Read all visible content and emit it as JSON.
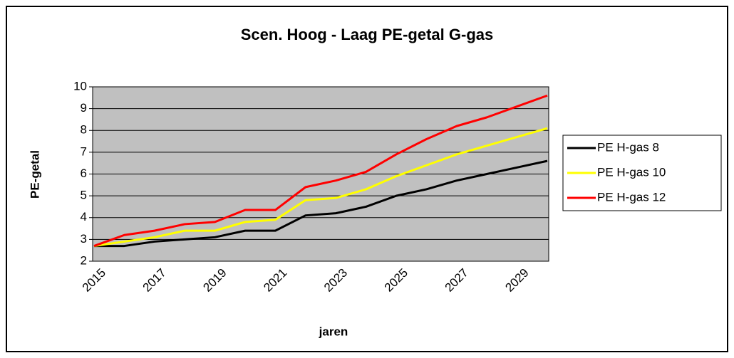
{
  "chart_data": {
    "type": "line",
    "title": "Scen. Hoog - Laag PE-getal G-gas",
    "x_label": "jaren",
    "y_label": "PE-getal",
    "categories": [
      "2015",
      null,
      "2017",
      null,
      "2019",
      null,
      "2021",
      null,
      "2023",
      null,
      "2025",
      null,
      "2027",
      null,
      "2029",
      null
    ],
    "series": [
      {
        "name": "PE H-gas 8",
        "color": "#000000",
        "values": [
          2.7,
          2.7,
          2.9,
          3.0,
          3.1,
          3.4,
          3.4,
          4.1,
          4.2,
          4.5,
          5.0,
          5.3,
          5.7,
          6.0,
          6.3,
          6.6
        ]
      },
      {
        "name": "PE H-gas 10",
        "color": "#ffff00",
        "values": [
          2.7,
          2.9,
          3.1,
          3.4,
          3.4,
          3.8,
          3.9,
          4.8,
          4.9,
          5.3,
          5.9,
          6.4,
          6.9,
          7.3,
          7.7,
          8.1
        ]
      },
      {
        "name": "PE H-gas 12",
        "color": "#ff0000",
        "values": [
          2.7,
          3.2,
          3.4,
          3.7,
          3.8,
          4.35,
          4.35,
          5.4,
          5.7,
          6.1,
          6.9,
          7.6,
          8.2,
          8.6,
          9.1,
          9.6
        ]
      }
    ],
    "ylim": [
      2,
      10
    ],
    "yticks": [
      2,
      3,
      4,
      5,
      6,
      7,
      8,
      9,
      10
    ],
    "grid": true,
    "legend": "right",
    "plot_background": "#c0c0c0"
  }
}
